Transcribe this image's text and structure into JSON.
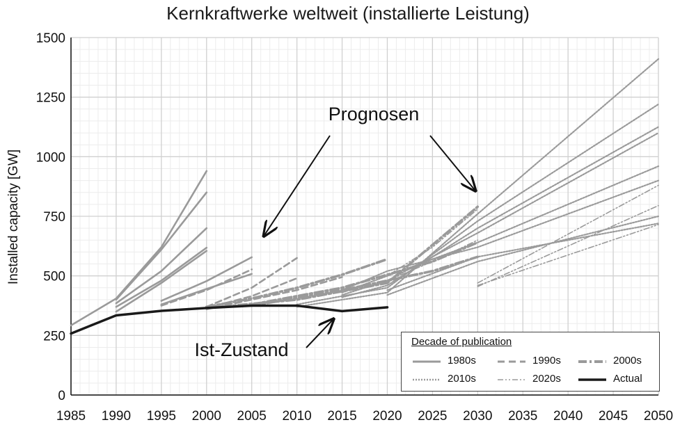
{
  "title": "Kernkraftwerke weltweit (installierte Leistung)",
  "colors": {
    "projection": "#9a9a9a",
    "actual": "#1a1a1a",
    "grid_major": "#d0d0d0",
    "grid_minor": "#ececec"
  },
  "chart_data": {
    "type": "line",
    "title": "Kernkraftwerke weltweit (installierte Leistung)",
    "xlabel": "",
    "ylabel": "Installed capacity [GW]",
    "xlim": [
      1985,
      2050
    ],
    "ylim": [
      0,
      1500
    ],
    "xticks": [
      1985,
      1990,
      1995,
      2000,
      2005,
      2010,
      2015,
      2020,
      2025,
      2030,
      2035,
      2040,
      2045,
      2050
    ],
    "yticks": [
      0,
      250,
      500,
      750,
      1000,
      1250,
      1500
    ],
    "grid": true,
    "legend_position": "bottom-right",
    "annotations": [
      {
        "text": "Prognosen",
        "points_to": [
          [
            2006,
            660
          ],
          [
            2030,
            845
          ]
        ]
      },
      {
        "text": "Ist-Zustand",
        "points_to": [
          [
            2014,
            318
          ]
        ]
      }
    ],
    "actual": {
      "name": "Actual",
      "x": [
        1985,
        1990,
        1995,
        2000,
        2005,
        2010,
        2015,
        2020
      ],
      "y": [
        258,
        334,
        353,
        365,
        375,
        375,
        352,
        368
      ]
    },
    "projections": [
      {
        "decade": "1980s",
        "x": [
          1985,
          1990,
          1995,
          2000
        ],
        "y": [
          292,
          405,
          620,
          940
        ]
      },
      {
        "decade": "1980s",
        "x": [
          1990,
          1995,
          2000
        ],
        "y": [
          400,
          610,
          850
        ]
      },
      {
        "decade": "1980s",
        "x": [
          1990,
          1995,
          2000
        ],
        "y": [
          385,
          520,
          700
        ]
      },
      {
        "decade": "1980s",
        "x": [
          1990,
          1995,
          2000
        ],
        "y": [
          370,
          480,
          618
        ]
      },
      {
        "decade": "1980s",
        "x": [
          1990,
          1995,
          2000
        ],
        "y": [
          350,
          470,
          605
        ]
      },
      {
        "decade": "1980s",
        "x": [
          1995,
          2000,
          2005
        ],
        "y": [
          395,
          478,
          578
        ]
      },
      {
        "decade": "1980s",
        "x": [
          1995,
          2000,
          2005
        ],
        "y": [
          380,
          445,
          508
        ]
      },
      {
        "decade": "1990s",
        "x": [
          2000,
          2005,
          2010
        ],
        "y": [
          370,
          450,
          575
        ]
      },
      {
        "decade": "1990s",
        "x": [
          1995,
          2000,
          2005
        ],
        "y": [
          375,
          440,
          527
        ]
      },
      {
        "decade": "1990s",
        "x": [
          2000,
          2005,
          2010
        ],
        "y": [
          365,
          415,
          490
        ]
      },
      {
        "decade": "1990s",
        "x": [
          2000,
          2005,
          2010,
          2015
        ],
        "y": [
          360,
          400,
          440,
          495
        ]
      },
      {
        "decade": "2000s",
        "x": [
          2000,
          2005,
          2010,
          2015,
          2020
        ],
        "y": [
          370,
          405,
          450,
          505,
          570
        ]
      },
      {
        "decade": "2000s",
        "x": [
          2000,
          2010,
          2020,
          2030
        ],
        "y": [
          365,
          400,
          470,
          790
        ]
      },
      {
        "decade": "2000s",
        "x": [
          2005,
          2015,
          2025,
          2030
        ],
        "y": [
          380,
          450,
          560,
          640
        ]
      },
      {
        "decade": "2000s",
        "x": [
          2005,
          2015,
          2025,
          2030
        ],
        "y": [
          375,
          440,
          520,
          580
        ]
      },
      {
        "decade": "2010s",
        "x": [
          2010,
          2020,
          2030,
          2050
        ],
        "y": [
          370,
          430,
          760,
          1410
        ]
      },
      {
        "decade": "2010s",
        "x": [
          2010,
          2020,
          2030,
          2050
        ],
        "y": [
          380,
          450,
          730,
          1220
        ]
      },
      {
        "decade": "2010s",
        "x": [
          2015,
          2020,
          2030,
          2050
        ],
        "y": [
          410,
          460,
          700,
          1125
        ]
      },
      {
        "decade": "2010s",
        "x": [
          2015,
          2020,
          2030,
          2050
        ],
        "y": [
          420,
          480,
          680,
          1100
        ]
      },
      {
        "decade": "2010s",
        "x": [
          2015,
          2020,
          2030,
          2050
        ],
        "y": [
          430,
          500,
          640,
          960
        ]
      },
      {
        "decade": "2010s",
        "x": [
          2015,
          2020,
          2030,
          2050
        ],
        "y": [
          440,
          520,
          620,
          900
        ]
      },
      {
        "decade": "2010s",
        "x": [
          2020,
          2030,
          2050
        ],
        "y": [
          420,
          560,
          750
        ]
      },
      {
        "decade": "2010s",
        "x": [
          2020,
          2030,
          2050
        ],
        "y": [
          440,
          580,
          720
        ]
      },
      {
        "decade": "2020s",
        "x": [
          2020,
          2025,
          2030
        ],
        "y": [
          480,
          560,
          650
        ]
      },
      {
        "decade": "2020s",
        "x": [
          2020,
          2025,
          2030
        ],
        "y": [
          500,
          620,
          780
        ]
      },
      {
        "decade": "2020s",
        "x": [
          2030,
          2050
        ],
        "y": [
          470,
          880
        ]
      },
      {
        "decade": "2020s",
        "x": [
          2030,
          2050
        ],
        "y": [
          455,
          795
        ]
      },
      {
        "decade": "2020s",
        "x": [
          2030,
          2050
        ],
        "y": [
          460,
          715
        ]
      }
    ]
  },
  "legend": {
    "title": "Decade of publication",
    "items": [
      {
        "label": "1980s",
        "style": "solid"
      },
      {
        "label": "1990s",
        "style": "dashed"
      },
      {
        "label": "2000s",
        "style": "dashdot"
      },
      {
        "label": "2010s",
        "style": "dotted"
      },
      {
        "label": "2020s",
        "style": "dashdotdot"
      },
      {
        "label": "Actual",
        "style": "actual"
      }
    ]
  },
  "annotation_labels": {
    "prognosen": "Prognosen",
    "ist_zustand": "Ist-Zustand"
  }
}
